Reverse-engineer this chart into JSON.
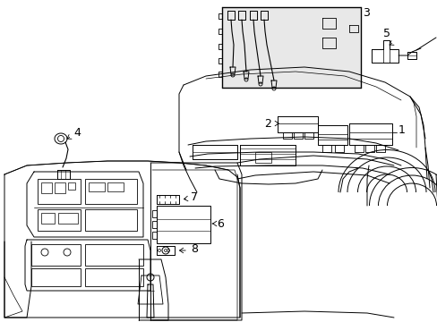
{
  "background_color": "#ffffff",
  "line_color": "#000000",
  "lw": 0.7,
  "figsize": [
    4.89,
    3.6
  ],
  "dpi": 100
}
